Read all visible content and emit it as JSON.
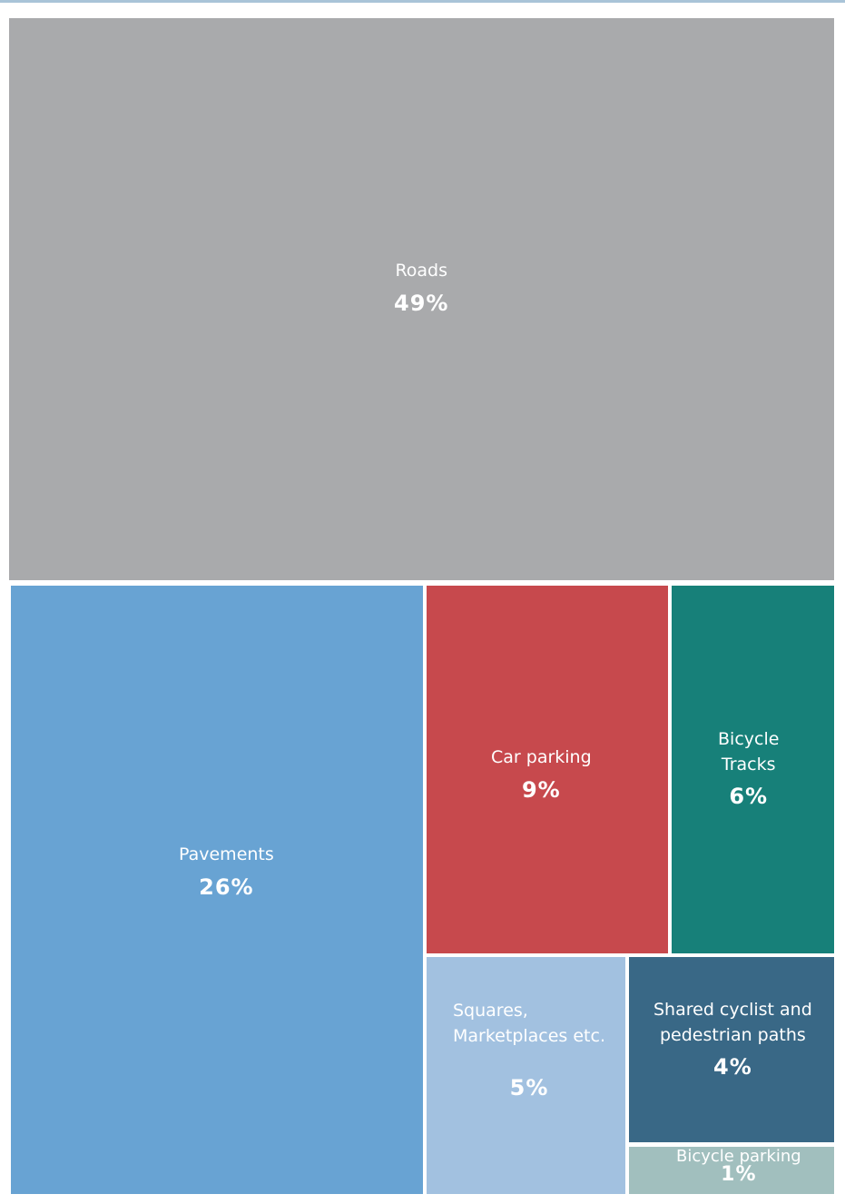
{
  "chart_data": {
    "type": "treemap",
    "title": "",
    "items": [
      {
        "label": "Roads",
        "value": 49,
        "display": "49%",
        "color": "#a9aaac"
      },
      {
        "label": "Pavements",
        "value": 26,
        "display": "26%",
        "color": "#68a3d3"
      },
      {
        "label": "Car parking",
        "value": 9,
        "display": "9%",
        "color": "#c7494d"
      },
      {
        "label": "Bicycle\nTracks",
        "value": 6,
        "display": "6%",
        "color": "#178079"
      },
      {
        "label": "Squares,\nMarketplaces etc.",
        "value": 5,
        "display": "5%",
        "color": "#a2c1e0"
      },
      {
        "label": "Shared cyclist and\npedestrian paths",
        "value": 4,
        "display": "4%",
        "color": "#396886"
      },
      {
        "label": "Bicycle parking",
        "value": 1,
        "display": "1%",
        "color": "#a1bfbe"
      }
    ]
  }
}
